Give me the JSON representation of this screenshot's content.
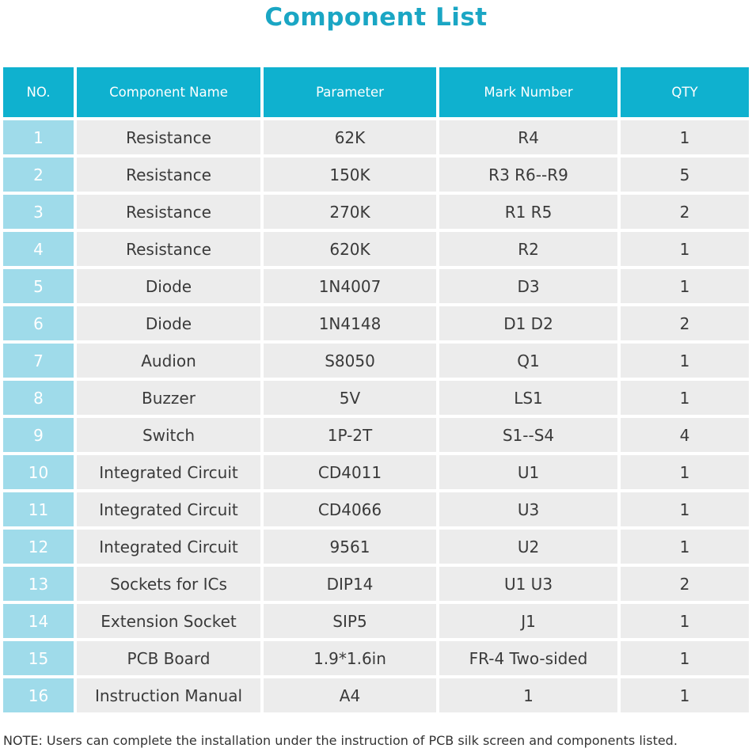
{
  "title": "Component List",
  "table": {
    "headers": [
      "NO.",
      "Component Name",
      "Parameter",
      "Mark Number",
      "QTY"
    ],
    "rows": [
      [
        "1",
        "Resistance",
        "62K",
        "R4",
        "1"
      ],
      [
        "2",
        "Resistance",
        "150K",
        "R3   R6--R9",
        "5"
      ],
      [
        "3",
        "Resistance",
        "270K",
        "R1  R5",
        "2"
      ],
      [
        "4",
        "Resistance",
        "620K",
        "R2",
        "1"
      ],
      [
        "5",
        "Diode",
        "1N4007",
        "D3",
        "1"
      ],
      [
        "6",
        "Diode",
        "1N4148",
        "D1   D2",
        "2"
      ],
      [
        "7",
        "Audion",
        "S8050",
        "Q1",
        "1"
      ],
      [
        "8",
        "Buzzer",
        "5V",
        "LS1",
        "1"
      ],
      [
        "9",
        "Switch",
        "1P-2T",
        "S1--S4",
        "4"
      ],
      [
        "10",
        "Integrated Circuit",
        "CD4011",
        "U1",
        "1"
      ],
      [
        "11",
        "Integrated Circuit",
        "CD4066",
        "U3",
        "1"
      ],
      [
        "12",
        "Integrated Circuit",
        "9561",
        "U2",
        "1"
      ],
      [
        "13",
        "Sockets for ICs",
        "DIP14",
        "U1  U3",
        "2"
      ],
      [
        "14",
        "Extension Socket",
        "SIP5",
        "J1",
        "1"
      ],
      [
        "15",
        "PCB Board",
        "1.9*1.6in",
        "FR-4   Two-sided",
        "1"
      ],
      [
        "16",
        "Instruction Manual",
        "A4",
        "1",
        "1"
      ]
    ]
  },
  "note": "NOTE: Users can complete the installation under the instruction of PCB silk screen and components listed.",
  "colors": {
    "title": "#1aa6c4",
    "header_bg": "#0fb1cf",
    "number_bg": "#9fdbea",
    "cell_bg": "#ececec"
  }
}
